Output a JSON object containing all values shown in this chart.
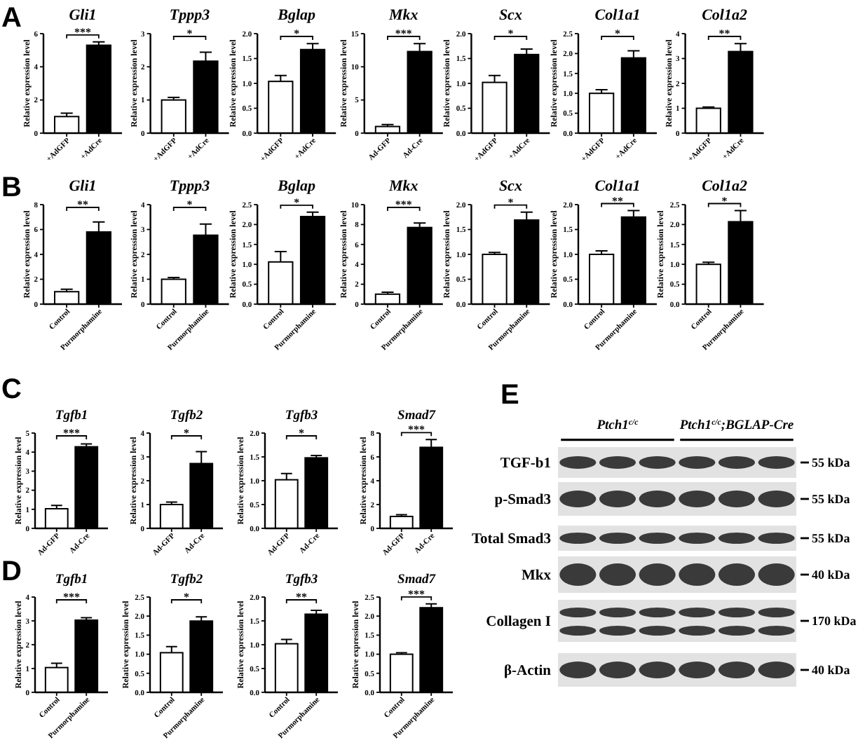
{
  "chart_data": [
    {
      "type": "bar",
      "title": "Gli1",
      "categories": [
        "+AdGFP",
        "+AdCre"
      ],
      "values": [
        1.0,
        5.3
      ],
      "errors": [
        0.2,
        0.2
      ],
      "colors": [
        "#ffffff",
        "#000000"
      ],
      "ylabel": "Relative expression level",
      "ylim": [
        0,
        6
      ],
      "yticks": [
        0,
        2,
        4,
        6
      ],
      "annotations": [
        "***",
        "A"
      ]
    },
    {
      "type": "bar",
      "title": "Tppp3",
      "categories": [
        "+AdGFP",
        "+AdCre"
      ],
      "values": [
        1.0,
        2.17
      ],
      "errors": [
        0.08,
        0.27
      ],
      "colors": [
        "#ffffff",
        "#000000"
      ],
      "ylabel": "Relative expression level",
      "ylim": [
        0,
        3
      ],
      "yticks": [
        0,
        1,
        2,
        3
      ],
      "annotations": [
        "*"
      ]
    },
    {
      "type": "bar",
      "title": "Bglap",
      "categories": [
        "+AdGFP",
        "+AdCre"
      ],
      "values": [
        1.04,
        1.68
      ],
      "errors": [
        0.12,
        0.12
      ],
      "colors": [
        "#ffffff",
        "#000000"
      ],
      "ylabel": "Relative expression level",
      "ylim": [
        0,
        2
      ],
      "yticks": [
        {
          "value": 0,
          "label": "0.0"
        },
        0.5,
        {
          "value": 1,
          "label": "1.0"
        },
        1.5,
        {
          "value": 2,
          "label": "2.0"
        }
      ],
      "annotations": [
        "*"
      ]
    },
    {
      "type": "bar",
      "title": "Mkx",
      "categories": [
        "Ad-GFP",
        "Ad-Cre"
      ],
      "values": [
        1.0,
        12.3
      ],
      "errors": [
        0.3,
        1.2
      ],
      "colors": [
        "#ffffff",
        "#000000"
      ],
      "ylabel": "Relative expression level",
      "ylim": [
        0,
        15
      ],
      "yticks": [
        0,
        5,
        10,
        15
      ],
      "annotations": [
        "***"
      ]
    },
    {
      "type": "bar",
      "title": "Scx",
      "categories": [
        "+AdGFP",
        "+AdCre"
      ],
      "values": [
        1.02,
        1.58
      ],
      "errors": [
        0.14,
        0.11
      ],
      "colors": [
        "#ffffff",
        "#000000"
      ],
      "ylabel": "Relative expression level",
      "ylim": [
        0,
        2
      ],
      "yticks": [
        {
          "value": 0,
          "label": "0.0"
        },
        0.5,
        {
          "value": 1,
          "label": "1.0"
        },
        1.5,
        {
          "value": 2,
          "label": "2.0"
        }
      ],
      "annotations": [
        "*"
      ]
    },
    {
      "type": "bar",
      "title": "Col1a1",
      "categories": [
        "+AdGFP",
        "+AdCre"
      ],
      "values": [
        1.0,
        1.89
      ],
      "errors": [
        0.09,
        0.18
      ],
      "colors": [
        "#ffffff",
        "#000000"
      ],
      "ylabel": "Relative expression level",
      "ylim": [
        0,
        2.5
      ],
      "yticks": [
        {
          "value": 0,
          "label": "0.0"
        },
        0.5,
        {
          "value": 1,
          "label": "1.0"
        },
        1.5,
        {
          "value": 2,
          "label": "2.0"
        },
        2.5
      ],
      "annotations": [
        "*"
      ]
    },
    {
      "type": "bar",
      "title": "Col1a2",
      "categories": [
        "+AdGFP",
        "+AdCre"
      ],
      "values": [
        1.0,
        3.28
      ],
      "errors": [
        0.05,
        0.32
      ],
      "colors": [
        "#ffffff",
        "#000000"
      ],
      "ylabel": "Relative expression level",
      "ylim": [
        0,
        4
      ],
      "yticks": [
        0,
        1,
        2,
        3,
        4
      ],
      "annotations": [
        "**"
      ]
    },
    {
      "type": "bar",
      "title": "Gli1",
      "categories": [
        "Control",
        "Purmorphamine"
      ],
      "values": [
        1.0,
        5.8
      ],
      "errors": [
        0.2,
        0.8
      ],
      "colors": [
        "#ffffff",
        "#000000"
      ],
      "ylabel": "Relative expression level",
      "ylim": [
        0,
        8
      ],
      "yticks": [
        0,
        2,
        4,
        6,
        8
      ],
      "annotations": [
        "**",
        "B"
      ]
    },
    {
      "type": "bar",
      "title": "Tppp3",
      "categories": [
        "Control",
        "Purmorphamine"
      ],
      "values": [
        1.0,
        2.77
      ],
      "errors": [
        0.07,
        0.45
      ],
      "colors": [
        "#ffffff",
        "#000000"
      ],
      "ylabel": "Relative expression level",
      "ylim": [
        0,
        4
      ],
      "yticks": [
        0,
        1,
        2,
        3,
        4
      ],
      "annotations": [
        "*"
      ]
    },
    {
      "type": "bar",
      "title": "Bglap",
      "categories": [
        "Control",
        "Purmorphamine"
      ],
      "values": [
        1.06,
        2.2
      ],
      "errors": [
        0.26,
        0.11
      ],
      "colors": [
        "#ffffff",
        "#000000"
      ],
      "ylabel": "Relative expression level",
      "ylim": [
        0,
        2.5
      ],
      "yticks": [
        {
          "value": 0,
          "label": "0.0"
        },
        0.5,
        {
          "value": 1,
          "label": "1.0"
        },
        1.5,
        {
          "value": 2,
          "label": "2.0"
        },
        2.5
      ],
      "annotations": [
        "*"
      ]
    },
    {
      "type": "bar",
      "title": "Mkx",
      "categories": [
        "Control",
        "Purmorphamine"
      ],
      "values": [
        1.0,
        7.7
      ],
      "errors": [
        0.2,
        0.45
      ],
      "colors": [
        "#ffffff",
        "#000000"
      ],
      "ylabel": "Relative expression level",
      "ylim": [
        0,
        10
      ],
      "yticks": [
        0,
        2,
        4,
        6,
        8,
        10
      ],
      "annotations": [
        "***"
      ]
    },
    {
      "type": "bar",
      "title": "Scx",
      "categories": [
        "Control",
        "Purmorphamine"
      ],
      "values": [
        1.0,
        1.69
      ],
      "errors": [
        0.04,
        0.16
      ],
      "colors": [
        "#ffffff",
        "#000000"
      ],
      "ylabel": "Relative expression level",
      "ylim": [
        0,
        2
      ],
      "yticks": [
        {
          "value": 0,
          "label": "0.0"
        },
        0.5,
        {
          "value": 1,
          "label": "1.0"
        },
        1.5,
        {
          "value": 2,
          "label": "2.0"
        }
      ],
      "annotations": [
        "*"
      ]
    },
    {
      "type": "bar",
      "title": "Col1a1",
      "categories": [
        "Control",
        "Purmorphamine"
      ],
      "values": [
        1.0,
        1.75
      ],
      "errors": [
        0.07,
        0.13
      ],
      "colors": [
        "#ffffff",
        "#000000"
      ],
      "ylabel": "Relative expression level",
      "ylim": [
        0,
        2
      ],
      "yticks": [
        {
          "value": 0,
          "label": "0.0"
        },
        0.5,
        {
          "value": 1,
          "label": "1.0"
        },
        1.5,
        {
          "value": 2,
          "label": "2.0"
        }
      ],
      "annotations": [
        "**"
      ]
    },
    {
      "type": "bar",
      "title": "Col1a2",
      "categories": [
        "Control",
        "Purmorphamine"
      ],
      "values": [
        1.0,
        2.07
      ],
      "errors": [
        0.05,
        0.28
      ],
      "colors": [
        "#ffffff",
        "#000000"
      ],
      "ylabel": "Relative expression level",
      "ylim": [
        0,
        2.5
      ],
      "yticks": [
        {
          "value": 0,
          "label": "0.0"
        },
        0.5,
        {
          "value": 1,
          "label": "1.0"
        },
        1.5,
        {
          "value": 2,
          "label": "2.0"
        },
        2.5
      ],
      "annotations": [
        "*"
      ]
    },
    {
      "type": "bar",
      "title": "Tgfb1",
      "categories": [
        "Ad-GFP",
        "Ad-Cre"
      ],
      "values": [
        1.03,
        4.28
      ],
      "errors": [
        0.17,
        0.15
      ],
      "colors": [
        "#ffffff",
        "#000000"
      ],
      "ylabel": "Relative expression level",
      "ylim": [
        0,
        5
      ],
      "yticks": [
        0,
        1,
        2,
        3,
        4,
        5
      ],
      "annotations": [
        "***",
        "C"
      ]
    },
    {
      "type": "bar",
      "title": "Tgfb2",
      "categories": [
        "Ad-GFP",
        "Ad-Cre"
      ],
      "values": [
        1.0,
        2.72
      ],
      "errors": [
        0.1,
        0.5
      ],
      "colors": [
        "#ffffff",
        "#000000"
      ],
      "ylabel": "Relative expression level",
      "ylim": [
        0,
        4
      ],
      "yticks": [
        0,
        1,
        2,
        3,
        4
      ],
      "annotations": [
        "*"
      ]
    },
    {
      "type": "bar",
      "title": "Tgfb3",
      "categories": [
        "Ad-GFP",
        "Ad-Cre"
      ],
      "values": [
        1.02,
        1.48
      ],
      "errors": [
        0.13,
        0.05
      ],
      "colors": [
        "#ffffff",
        "#000000"
      ],
      "ylabel": "Relative expression level",
      "ylim": [
        0,
        2
      ],
      "yticks": [
        {
          "value": 0,
          "label": "0.0"
        },
        0.5,
        {
          "value": 1,
          "label": "1.0"
        },
        1.5,
        {
          "value": 2,
          "label": "2.0"
        }
      ],
      "annotations": [
        "*"
      ]
    },
    {
      "type": "bar",
      "title": "Smad7",
      "categories": [
        "Ad-GFP",
        "Ad-Cre"
      ],
      "values": [
        1.0,
        6.8
      ],
      "errors": [
        0.15,
        0.65
      ],
      "colors": [
        "#ffffff",
        "#000000"
      ],
      "ylabel": "Relative expression level",
      "ylim": [
        0,
        8
      ],
      "yticks": [
        0,
        2,
        4,
        6,
        8
      ],
      "annotations": [
        "***"
      ]
    },
    {
      "type": "bar",
      "title": "Tgfb1",
      "categories": [
        "Control",
        "Purmorphamine"
      ],
      "values": [
        1.04,
        3.03
      ],
      "errors": [
        0.18,
        0.1
      ],
      "colors": [
        "#ffffff",
        "#000000"
      ],
      "ylabel": "Relative expression level",
      "ylim": [
        0,
        4
      ],
      "yticks": [
        0,
        1,
        2,
        3,
        4
      ],
      "annotations": [
        "***",
        "D"
      ]
    },
    {
      "type": "bar",
      "title": "Tgfb2",
      "categories": [
        "Control",
        "Purmorphamine"
      ],
      "values": [
        1.04,
        1.87
      ],
      "errors": [
        0.16,
        0.11
      ],
      "colors": [
        "#ffffff",
        "#000000"
      ],
      "ylabel": "Relative expression level",
      "ylim": [
        0,
        2.5
      ],
      "yticks": [
        {
          "value": 0,
          "label": "0.0"
        },
        0.5,
        {
          "value": 1,
          "label": "1.0"
        },
        1.5,
        {
          "value": 2,
          "label": "2.0"
        },
        2.5
      ],
      "annotations": [
        "*"
      ]
    },
    {
      "type": "bar",
      "title": "Tgfb3",
      "categories": [
        "Control",
        "Purmorphamine"
      ],
      "values": [
        1.02,
        1.64
      ],
      "errors": [
        0.09,
        0.08
      ],
      "colors": [
        "#ffffff",
        "#000000"
      ],
      "ylabel": "Relative expression level",
      "ylim": [
        0,
        2
      ],
      "yticks": [
        {
          "value": 0,
          "label": "0.0"
        },
        0.5,
        {
          "value": 1,
          "label": "1.0"
        },
        1.5,
        {
          "value": 2,
          "label": "2.0"
        }
      ],
      "annotations": [
        "**"
      ]
    },
    {
      "type": "bar",
      "title": "Smad7",
      "categories": [
        "Control",
        "Purmorphamine"
      ],
      "values": [
        1.0,
        2.22
      ],
      "errors": [
        0.04,
        0.1
      ],
      "colors": [
        "#ffffff",
        "#000000"
      ],
      "ylabel": "Relative expression level",
      "ylim": [
        0,
        2.5
      ],
      "yticks": [
        {
          "value": 0,
          "label": "0.0"
        },
        0.5,
        {
          "value": 1,
          "label": "1.0"
        },
        1.5,
        {
          "value": 2,
          "label": "2.0"
        },
        2.5
      ],
      "annotations": [
        "***"
      ]
    },
    {
      "type": "other",
      "categories": [
        "Ptch1$^{c/c}$",
        "Ptch1$^{c/c}$;BGLAP-Cre"
      ],
      "y_categories": [
        "TGF-b1",
        "p-Smad3",
        "Total Smad3",
        "Mkx",
        "Collagen I",
        "β-Actin"
      ],
      "y2_categories": [
        "55 kDa",
        "55 kDa",
        "55 kDa",
        "40 kDa",
        "170 kDa",
        "40 kDa"
      ],
      "annotations": [
        "E"
      ]
    }
  ]
}
